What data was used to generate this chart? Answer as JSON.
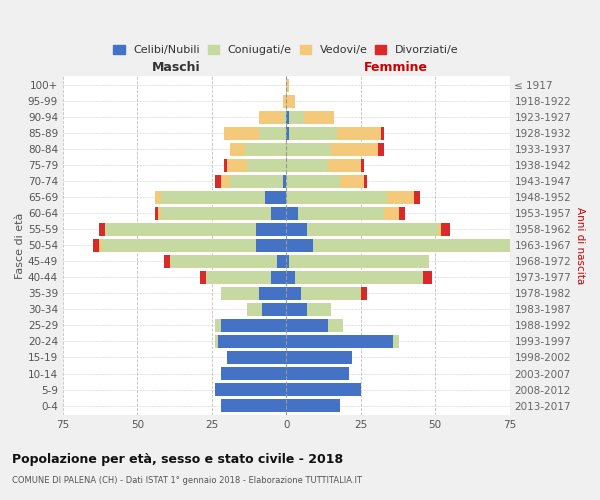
{
  "age_groups": [
    "0-4",
    "5-9",
    "10-14",
    "15-19",
    "20-24",
    "25-29",
    "30-34",
    "35-39",
    "40-44",
    "45-49",
    "50-54",
    "55-59",
    "60-64",
    "65-69",
    "70-74",
    "75-79",
    "80-84",
    "85-89",
    "90-94",
    "95-99",
    "100+"
  ],
  "birth_years": [
    "2013-2017",
    "2008-2012",
    "2003-2007",
    "1998-2002",
    "1993-1997",
    "1988-1992",
    "1983-1987",
    "1978-1982",
    "1973-1977",
    "1968-1972",
    "1963-1967",
    "1958-1962",
    "1953-1957",
    "1948-1952",
    "1943-1947",
    "1938-1942",
    "1933-1937",
    "1928-1932",
    "1923-1927",
    "1918-1922",
    "≤ 1917"
  ],
  "colors": {
    "celibi": "#4472c4",
    "coniugati": "#c5d9a0",
    "vedovi": "#f5c97a",
    "divorziati": "#d9292b"
  },
  "male": {
    "celibi": [
      22,
      24,
      22,
      20,
      23,
      22,
      8,
      9,
      5,
      3,
      10,
      10,
      5,
      7,
      1,
      0,
      0,
      0,
      0,
      0,
      0
    ],
    "coniugati": [
      0,
      0,
      0,
      0,
      1,
      2,
      5,
      13,
      22,
      36,
      52,
      51,
      37,
      35,
      18,
      13,
      14,
      9,
      1,
      0,
      0
    ],
    "vedovi": [
      0,
      0,
      0,
      0,
      0,
      0,
      0,
      0,
      0,
      0,
      1,
      0,
      1,
      2,
      3,
      7,
      5,
      12,
      8,
      1,
      0
    ],
    "divorziati": [
      0,
      0,
      0,
      0,
      0,
      0,
      0,
      0,
      2,
      2,
      2,
      2,
      1,
      0,
      2,
      1,
      0,
      0,
      0,
      0,
      0
    ]
  },
  "female": {
    "celibi": [
      18,
      25,
      21,
      22,
      36,
      14,
      7,
      5,
      3,
      1,
      9,
      7,
      4,
      0,
      0,
      0,
      0,
      1,
      1,
      0,
      0
    ],
    "coniugati": [
      0,
      0,
      0,
      0,
      2,
      5,
      8,
      20,
      43,
      47,
      68,
      44,
      29,
      34,
      18,
      14,
      15,
      16,
      5,
      0,
      0
    ],
    "vedovi": [
      0,
      0,
      0,
      0,
      0,
      0,
      0,
      0,
      0,
      0,
      0,
      1,
      5,
      9,
      8,
      11,
      16,
      15,
      10,
      3,
      1
    ],
    "divorziati": [
      0,
      0,
      0,
      0,
      0,
      0,
      0,
      2,
      3,
      0,
      4,
      3,
      2,
      2,
      1,
      1,
      2,
      1,
      0,
      0,
      0
    ]
  },
  "xlim": 75,
  "title": "Popolazione per età, sesso e stato civile - 2018",
  "subtitle": "COMUNE DI PALENA (CH) - Dati ISTAT 1° gennaio 2018 - Elaborazione TUTTITALIA.IT",
  "legend_labels": [
    "Celibi/Nubili",
    "Coniugati/e",
    "Vedovi/e",
    "Divorziati/e"
  ],
  "ylabel_left": "Fasce di età",
  "ylabel_right": "Anni di nascita",
  "header_left": "Maschi",
  "header_right": "Femmine",
  "bg_color": "#f0f0f0",
  "plot_bg": "#ffffff"
}
